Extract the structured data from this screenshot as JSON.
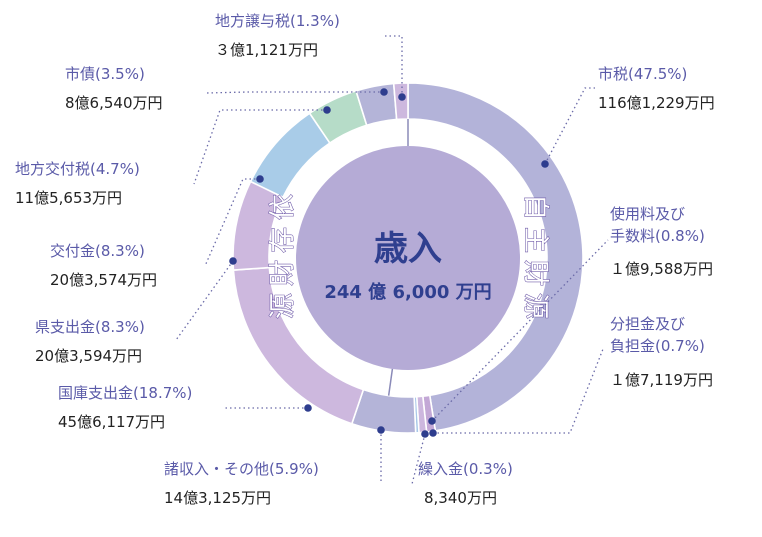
{
  "chart_data": {
    "type": "pie",
    "donut": true,
    "center": {
      "title": "歳入",
      "total": "244 億 6,000 万円"
    },
    "groups": [
      {
        "name": "自主財源",
        "chars": [
          "自",
          "主",
          "財",
          "源"
        ]
      },
      {
        "name": "依存財源",
        "chars": [
          "依",
          "存",
          "財",
          "源"
        ]
      }
    ],
    "segments": [
      {
        "name": "市税",
        "percent_label": "(47.5%)",
        "value": 47.5,
        "amount": "116億1,229万円",
        "color": "#b3b3d9",
        "group": "自主財源"
      },
      {
        "name": "使用料及び手数料",
        "name_lines": [
          "使用料及び",
          "手数料(0.8%)"
        ],
        "percent_label": "(0.8%)",
        "value": 0.8,
        "amount": "１億9,588万円",
        "color": "#c3a8d6",
        "group": "自主財源"
      },
      {
        "name": "分担金及び負担金",
        "name_lines": [
          "分担金及び",
          "負担金(0.7%)"
        ],
        "percent_label": "(0.7%)",
        "value": 0.7,
        "amount": "１億7,119万円",
        "color": "#cdb7de",
        "group": "自主財源"
      },
      {
        "name": "繰入金",
        "percent_label": "(0.3%)",
        "value": 0.3,
        "amount": "8,340万円",
        "color": "#a9c8e8",
        "group": "自主財源"
      },
      {
        "name": "諸収入・その他",
        "percent_label": "(5.9%)",
        "value": 5.9,
        "amount": "14億3,125万円",
        "color": "#b4b4d8",
        "group": "自主財源"
      },
      {
        "name": "国庫支出金",
        "percent_label": "(18.7%)",
        "value": 18.7,
        "amount": "45億6,117万円",
        "color": "#cdb8de",
        "group": "依存財源"
      },
      {
        "name": "県支出金",
        "percent_label": "(8.3%)",
        "value": 8.3,
        "amount": "20億3,594万円",
        "color": "#cdb8de",
        "group": "依存財源"
      },
      {
        "name": "交付金",
        "percent_label": "(8.3%)",
        "value": 8.3,
        "amount": "20億3,574万円",
        "color": "#a9cce8",
        "group": "依存財源"
      },
      {
        "name": "地方交付税",
        "percent_label": "(4.7%)",
        "value": 4.7,
        "amount": "11億5,653万円",
        "color": "#b6dcc8",
        "group": "依存財源"
      },
      {
        "name": "市債",
        "percent_label": "(3.5%)",
        "value": 3.5,
        "amount": "8億6,540万円",
        "color": "#b4b4d8",
        "group": "依存財源"
      },
      {
        "name": "地方譲与税",
        "percent_label": "(1.3%)",
        "value": 1.3,
        "amount": "３億1,121万円",
        "color": "#cdb8de",
        "group": "依存財源"
      }
    ],
    "colors": {
      "center_fill": "#b5abd6",
      "text_name": "#5a5aa8",
      "text_amount": "#222222",
      "leader": "#6a6aa8",
      "marker": "#2e3d8e",
      "center_text": "#2f3f8f"
    }
  }
}
